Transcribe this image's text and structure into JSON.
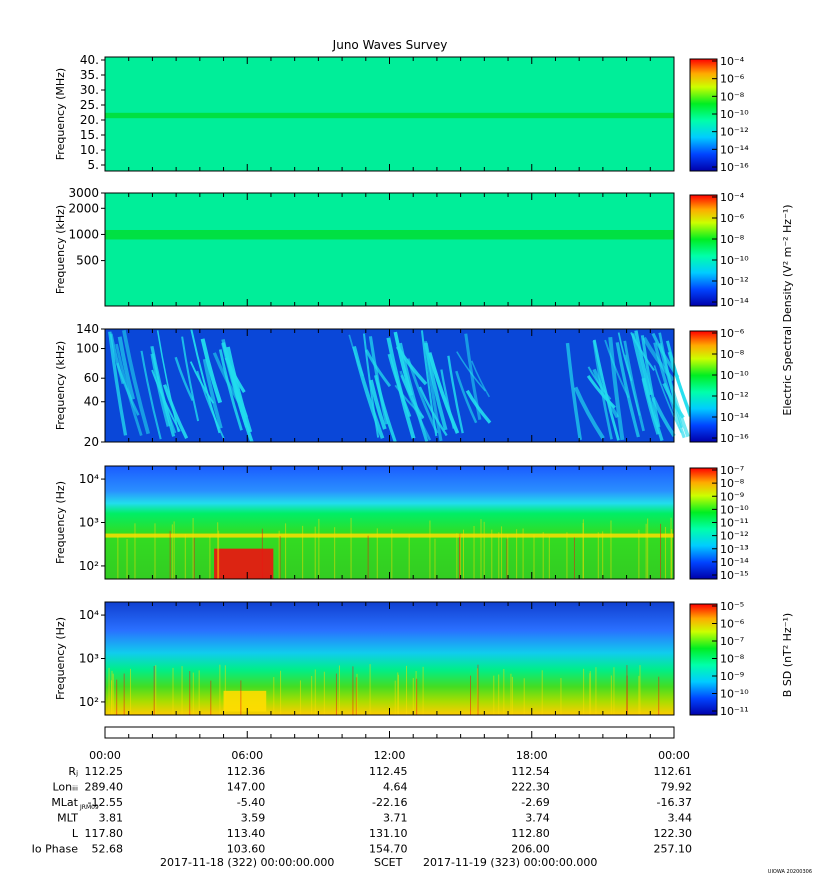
{
  "title": "Juno Waves Survey",
  "footer_stamp": "UIOWA 20200306",
  "colorbar_labels": {
    "electric": "Electric Spectral Density (V² m⁻² Hz⁻¹)",
    "magnetic": "B SD (nT² Hz⁻¹)"
  },
  "colors": {
    "background_high": "#00ee99",
    "band": "#00dd33",
    "background_low": "#0a47d8",
    "burst": "#22ddee",
    "hot": "#ee1111",
    "warm": "#ffdd00"
  },
  "chart_data": [
    {
      "type": "heatmap",
      "ylabel": "Frequency (MHz)",
      "ylim": [
        3,
        41
      ],
      "yticks": [
        "40.",
        "35.",
        "30.",
        "25.",
        "20.",
        "15.",
        "10.",
        "5."
      ],
      "ytick_values": [
        40,
        35,
        30,
        25,
        20,
        15,
        10,
        5
      ],
      "features": [
        {
          "kind": "band",
          "center": 21.5,
          "width": 1.8
        }
      ],
      "colorbar": {
        "ticks": [
          "10⁻⁴",
          "10⁻⁶",
          "10⁻⁸",
          "10⁻¹⁰",
          "10⁻¹²",
          "10⁻¹⁴",
          "10⁻¹⁶"
        ]
      }
    },
    {
      "type": "heatmap",
      "ylabel": "Frequency (kHz)",
      "ylim": [
        150,
        3000
      ],
      "yscale": "log",
      "yticks": [
        "3000",
        "2000",
        "1000",
        "500"
      ],
      "ytick_values": [
        3000,
        2000,
        1000,
        500
      ],
      "features": [
        {
          "kind": "band",
          "center": 1000,
          "width": 250
        }
      ],
      "colorbar": {
        "ticks": [
          "10⁻⁴",
          "10⁻⁶",
          "10⁻⁸",
          "10⁻¹⁰",
          "10⁻¹²",
          "10⁻¹⁴"
        ]
      }
    },
    {
      "type": "heatmap",
      "ylabel": "Frequency (kHz)",
      "ylim": [
        20,
        140
      ],
      "yscale": "log",
      "yticks": [
        "140",
        "100",
        "60",
        "40",
        "20"
      ],
      "ytick_values": [
        140,
        100,
        60,
        40,
        20
      ],
      "features": [
        {
          "kind": "bursts",
          "start_hour": 0.2,
          "end_hour": 5.6
        },
        {
          "kind": "bursts",
          "start_hour": 10.1,
          "end_hour": 15.5
        },
        {
          "kind": "bursts",
          "start_hour": 19.5,
          "end_hour": 24
        }
      ],
      "colorbar": {
        "ticks": [
          "10⁻⁶",
          "10⁻⁸",
          "10⁻¹⁰",
          "10⁻¹²",
          "10⁻¹⁴",
          "10⁻¹⁶"
        ]
      }
    },
    {
      "type": "heatmap",
      "ylabel": "Frequency (Hz)",
      "ylim": [
        50,
        20000
      ],
      "yscale": "log",
      "yticks": [
        "10⁴",
        "10³",
        "10²"
      ],
      "ytick_values": [
        10000,
        1000,
        100
      ],
      "features": [
        {
          "kind": "hotspot",
          "start_hour": 4.6,
          "end_hour": 7.1,
          "fmin": 50,
          "fmax": 250
        },
        {
          "kind": "line",
          "freq": 500
        }
      ],
      "colorbar": {
        "ticks": [
          "10⁻⁷",
          "10⁻⁸",
          "10⁻⁹",
          "10⁻¹⁰",
          "10⁻¹¹",
          "10⁻¹²",
          "10⁻¹³",
          "10⁻¹⁴",
          "10⁻¹⁵"
        ]
      }
    },
    {
      "type": "heatmap",
      "ylabel": "Frequency (Hz)",
      "ylim": [
        50,
        20000
      ],
      "yscale": "log",
      "yticks": [
        "10⁴",
        "10³",
        "10²"
      ],
      "ytick_values": [
        10000,
        1000,
        100
      ],
      "features": [
        {
          "kind": "patch",
          "start_hour": 5.0,
          "end_hour": 6.8,
          "fmin": 60,
          "fmax": 180
        }
      ],
      "colorbar": {
        "ticks": [
          "10⁻⁵",
          "10⁻⁶",
          "10⁻⁷",
          "10⁻⁸",
          "10⁻⁹",
          "10⁻¹⁰",
          "10⁻¹¹"
        ]
      }
    }
  ],
  "time_axis": {
    "labels": [
      "00:00",
      "06:00",
      "12:00",
      "18:00",
      "00:00"
    ],
    "label_hours": [
      0,
      6,
      12,
      18,
      24
    ]
  },
  "ephemeris": [
    {
      "label": "Rⱼ",
      "values": [
        "112.25",
        "112.36",
        "112.45",
        "112.54",
        "112.61"
      ]
    },
    {
      "label": "Lonᵢᵢᵢ",
      "values": [
        "289.40",
        "147.00",
        "4.64",
        "222.30",
        "79.92"
      ]
    },
    {
      "label": "MLat",
      "sub": "JRM09",
      "values": [
        "-12.55",
        "-5.40",
        "-22.16",
        "-2.69",
        "-16.37"
      ]
    },
    {
      "label": "MLT",
      "values": [
        "3.81",
        "3.59",
        "3.71",
        "3.74",
        "3.44"
      ]
    },
    {
      "label": "L",
      "values": [
        "117.80",
        "113.40",
        "131.10",
        "112.80",
        "122.30"
      ]
    },
    {
      "label": "Io Phase",
      "values": [
        "52.68",
        "103.60",
        "154.70",
        "206.00",
        "257.10"
      ]
    }
  ],
  "footer": {
    "start": "2017-11-18 (322) 00:00:00.000",
    "mid": "SCET",
    "end": "2017-11-19 (323) 00:00:00.000"
  }
}
